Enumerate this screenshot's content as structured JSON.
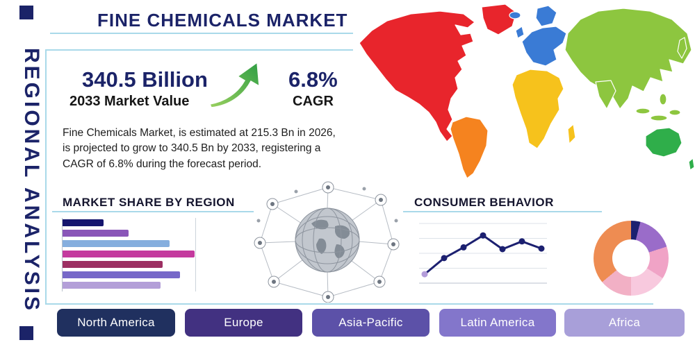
{
  "header": {
    "title": "FINE CHEMICALS MARKET",
    "side_label": "REGIONAL ANALYSIS",
    "accent_navy": "#1b2368",
    "rule_color": "#a9d9e9"
  },
  "stats": {
    "market_value": "340.5 Billion",
    "market_value_caption": "2033 Market Value",
    "cagr_value": "6.8%",
    "cagr_caption": "CAGR",
    "growth_icon": "up-trend-arrow-icon",
    "growth_icon_color": "#3fa344",
    "description": "Fine Chemicals Market, is estimated at 215.3 Bn in 2026, is projected to grow to 340.5 Bn by 2033, registering a CAGR of 6.8% during the forecast period."
  },
  "map": {
    "name": "world-map-colored-by-region",
    "regions": {
      "north_america": "#e8252c",
      "greenland": "#e8252c",
      "south_america": "#f5831f",
      "europe": "#3a7bd5",
      "africa": "#f6c21c",
      "asia": "#8dc63f",
      "southeast_asia": "#8dc63f",
      "australia": "#2fae4a"
    }
  },
  "sections": {
    "market_share_title": "MARKET SHARE BY REGION",
    "consumer_behavior_title": "CONSUMER BEHAVIOR",
    "center_graphic": "connected-globe-network"
  },
  "region_buttons": [
    {
      "label": "North America",
      "color": "#20305f"
    },
    {
      "label": "Europe",
      "color": "#423181"
    },
    {
      "label": "Asia-Pacific",
      "color": "#5c51a8"
    },
    {
      "label": "Latin America",
      "color": "#8376cb"
    },
    {
      "label": "Africa",
      "color": "#a89fd9"
    }
  ],
  "chart_data": [
    {
      "id": "market_share_by_region",
      "type": "bar",
      "orientation": "horizontal",
      "title": "MARKET SHARE BY REGION",
      "values": [
        31,
        50,
        81,
        100,
        76,
        89,
        74
      ],
      "xlim": [
        0,
        100
      ],
      "colors": [
        "#15156e",
        "#8a56b8",
        "#85aede",
        "#c43a9e",
        "#9c2f62",
        "#7668c8",
        "#b39fd8"
      ],
      "grid": false
    },
    {
      "id": "consumer_behavior",
      "type": "line",
      "title": "CONSUMER BEHAVIOR",
      "x": [
        1,
        2,
        3,
        4,
        5,
        6,
        7
      ],
      "values": [
        15,
        42,
        60,
        80,
        57,
        70,
        58
      ],
      "ylim": [
        0,
        100
      ],
      "grid": true,
      "line_color": "#1c2070",
      "marker_color": "#1c2070",
      "first_marker_color": "#b49dda"
    },
    {
      "id": "regional_donut",
      "type": "pie",
      "donut": true,
      "segments": [
        {
          "color": "#1c2070",
          "value": 4
        },
        {
          "color": "#9a6cc9",
          "value": 16
        },
        {
          "color": "#f0a3c6",
          "value": 14
        },
        {
          "color": "#f8c9de",
          "value": 16
        },
        {
          "color": "#f2b0c5",
          "value": 14
        },
        {
          "color": "#ee8c52",
          "value": 36
        }
      ]
    }
  ]
}
